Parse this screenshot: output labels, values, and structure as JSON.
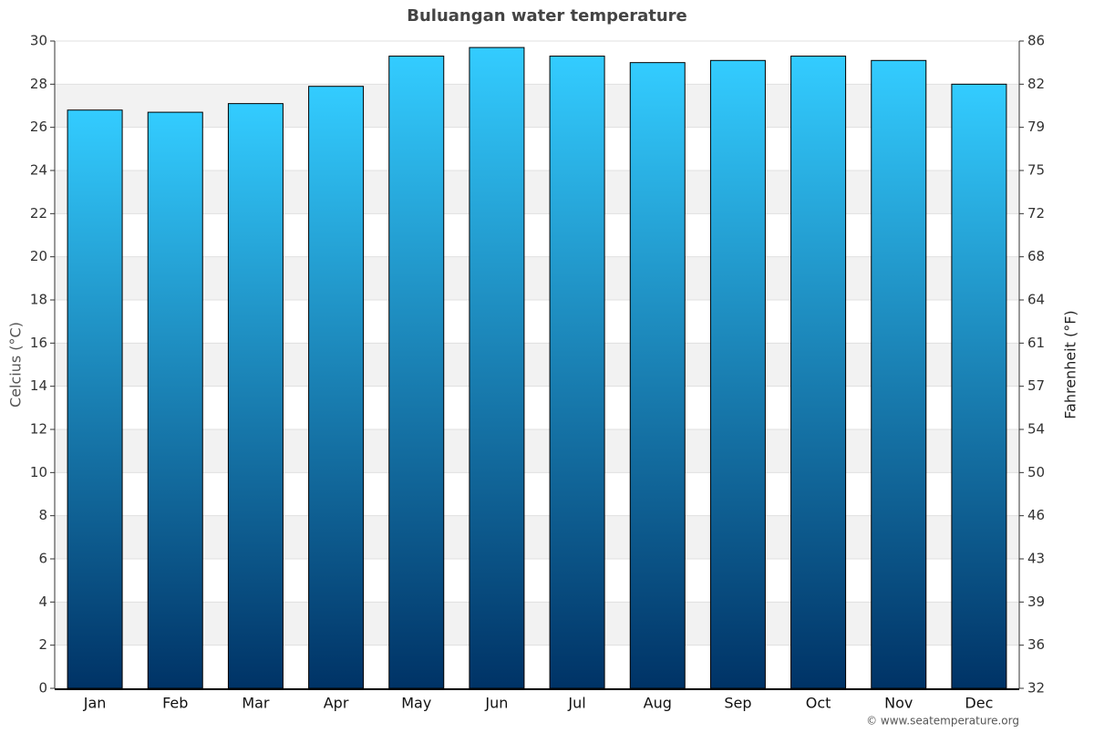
{
  "chart_data": {
    "type": "bar",
    "title": "Buluangan water temperature",
    "y_label": "Celcius (°C)",
    "y2_label": "Fahrenheit (°F)",
    "credit": "© www.seatemperature.org",
    "categories": [
      "Jan",
      "Feb",
      "Mar",
      "Apr",
      "May",
      "Jun",
      "Jul",
      "Aug",
      "Sep",
      "Oct",
      "Nov",
      "Dec"
    ],
    "values": [
      26.8,
      26.7,
      27.1,
      27.9,
      29.3,
      29.7,
      29.3,
      29.0,
      29.1,
      29.3,
      29.1,
      28.0
    ],
    "color": "#33ccff",
    "color_bottom": "#003366",
    "ylim": [
      0,
      30
    ],
    "yticks": [
      0,
      2,
      4,
      6,
      8,
      10,
      12,
      14,
      16,
      18,
      20,
      22,
      24,
      26,
      28,
      30
    ],
    "y2lim": [
      32,
      86
    ],
    "y2ticks": [
      32,
      {
        "value": 35.6,
        "label": "36"
      },
      {
        "value": 39.2,
        "label": "39"
      },
      {
        "value": 42.8,
        "label": "43"
      },
      {
        "value": 46.4,
        "label": "46"
      },
      50,
      {
        "value": 53.6,
        "label": "54"
      },
      {
        "value": 57.2,
        "label": "57"
      },
      {
        "value": 60.8,
        "label": "61"
      },
      {
        "value": 64.4,
        "label": "64"
      },
      68,
      {
        "value": 71.6,
        "label": "72"
      },
      {
        "value": 75.2,
        "label": "75"
      },
      {
        "value": 78.8,
        "label": "79"
      },
      {
        "value": 82.4,
        "label": "82"
      },
      86
    ],
    "grid": true
  }
}
